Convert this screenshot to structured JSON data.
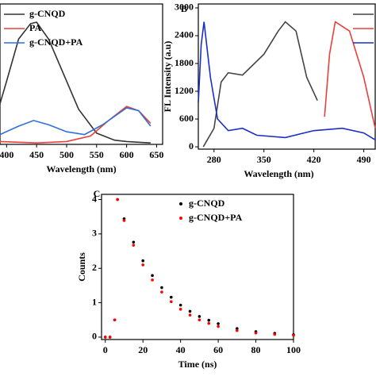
{
  "chart_data": [
    {
      "type": "line",
      "x_label": "Wavelength (nm)",
      "xlim": [
        389,
        660
      ],
      "xticks": [
        400,
        450,
        500,
        550,
        600,
        650
      ],
      "ylim": [
        0,
        1
      ],
      "series": [
        {
          "name": "g-CNQD",
          "color": "#333333",
          "x": [
            389,
            400,
            420,
            440,
            450,
            470,
            500,
            520,
            550,
            580,
            600,
            640
          ],
          "values": [
            0.29,
            0.45,
            0.75,
            0.86,
            0.87,
            0.75,
            0.45,
            0.25,
            0.08,
            0.03,
            0.02,
            0.01
          ]
        },
        {
          "name": "PA",
          "color": "#e8403a",
          "x": [
            389,
            450,
            500,
            540,
            570,
            600,
            620,
            640
          ],
          "values": [
            0.02,
            0.01,
            0.02,
            0.06,
            0.17,
            0.27,
            0.24,
            0.15
          ]
        },
        {
          "name": "g-CNQD+PA",
          "color": "#2f6fdb",
          "x": [
            389,
            420,
            445,
            470,
            500,
            530,
            560,
            600,
            620,
            640
          ],
          "values": [
            0.07,
            0.13,
            0.17,
            0.14,
            0.09,
            0.07,
            0.14,
            0.26,
            0.24,
            0.13
          ]
        }
      ]
    },
    {
      "type": "line",
      "panel_label": "B",
      "x_label": "Wavelength (nm)",
      "y_label": "FL Intensity (a.u)",
      "xlim": [
        258,
        506
      ],
      "xticks": [
        280,
        350,
        420,
        490
      ],
      "ylim": [
        -50,
        3085
      ],
      "yticks": [
        0,
        600,
        1200,
        1800,
        2400,
        3000
      ],
      "series": [
        {
          "color": "#444444",
          "x": [
            265,
            280,
            290,
            300,
            320,
            350,
            370,
            380,
            395,
            410,
            425
          ],
          "values": [
            0,
            400,
            1400,
            1600,
            1550,
            2000,
            2500,
            2700,
            2500,
            1500,
            1000
          ]
        },
        {
          "color": "#e8403a",
          "x": [
            435,
            442,
            450,
            470,
            490,
            506
          ],
          "values": [
            650,
            2000,
            2700,
            2500,
            1500,
            400
          ]
        },
        {
          "color": "#1a2fc4",
          "x": [
            258,
            262,
            266,
            275,
            285,
            300,
            320,
            340,
            380,
            420,
            460,
            490,
            506
          ],
          "values": [
            950,
            2200,
            2700,
            1500,
            600,
            350,
            400,
            250,
            200,
            350,
            400,
            300,
            150
          ]
        }
      ]
    },
    {
      "type": "scatter",
      "panel_label": "C",
      "x_label": "Time (ns)",
      "y_label": "Counts",
      "xlim": [
        -2,
        100
      ],
      "xticks": [
        0,
        20,
        40,
        60,
        80,
        100
      ],
      "ylim": [
        -0.07,
        4.15
      ],
      "yticks": [
        0,
        1,
        2,
        3,
        4
      ],
      "x": [
        0,
        2.5,
        5,
        6.5,
        10,
        15,
        20,
        25,
        30,
        35,
        40,
        45,
        50,
        55,
        60,
        70,
        80,
        90,
        100
      ],
      "series": [
        {
          "name": "g-CNQD",
          "color": "#000000",
          "values": [
            0,
            0,
            0.5,
            4.0,
            3.44,
            2.76,
            2.22,
            1.79,
            1.44,
            1.16,
            0.93,
            0.75,
            0.6,
            0.49,
            0.39,
            0.25,
            0.16,
            0.11,
            0.07
          ]
        },
        {
          "name": "g-CNQD+PA",
          "color": "#ff0000",
          "values": [
            0,
            0,
            0.5,
            4.0,
            3.39,
            2.67,
            2.1,
            1.66,
            1.31,
            1.03,
            0.81,
            0.64,
            0.5,
            0.4,
            0.31,
            0.19,
            0.12,
            0.08,
            0.05
          ]
        }
      ]
    }
  ]
}
